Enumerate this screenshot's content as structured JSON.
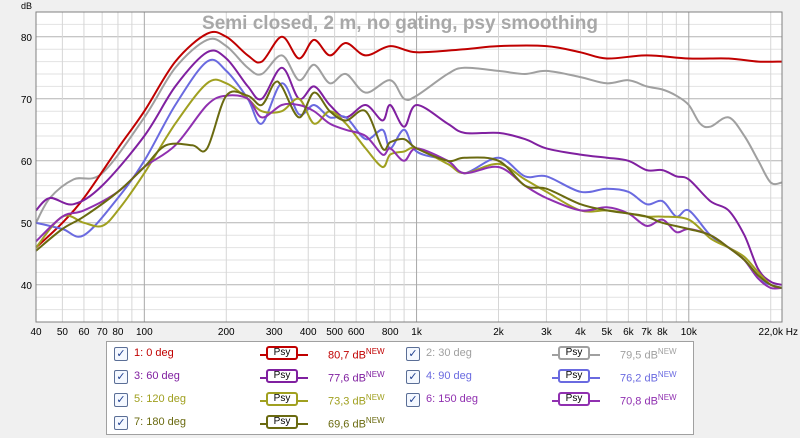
{
  "chart_data": {
    "type": "line",
    "title": "Semi closed, 2 m, no gating, psy smoothing",
    "ylabel": "dB",
    "xlabel": "Hz",
    "x_scale": "log",
    "xlim": [
      40,
      22000
    ],
    "ylim": [
      34,
      84
    ],
    "grid": true,
    "y_ticks": [
      40,
      50,
      60,
      70,
      80
    ],
    "x_ticks": [
      {
        "v": 40,
        "label": "40"
      },
      {
        "v": 50,
        "label": "50"
      },
      {
        "v": 60,
        "label": "60"
      },
      {
        "v": 70,
        "label": "70"
      },
      {
        "v": 80,
        "label": "80"
      },
      {
        "v": 100,
        "label": "100"
      },
      {
        "v": 200,
        "label": "200"
      },
      {
        "v": 300,
        "label": "300"
      },
      {
        "v": 400,
        "label": "400"
      },
      {
        "v": 500,
        "label": "500"
      },
      {
        "v": 600,
        "label": "600"
      },
      {
        "v": 800,
        "label": "800"
      },
      {
        "v": 1000,
        "label": "1k"
      },
      {
        "v": 2000,
        "label": "2k"
      },
      {
        "v": 3000,
        "label": "3k"
      },
      {
        "v": 4000,
        "label": "4k"
      },
      {
        "v": 5000,
        "label": "5k"
      },
      {
        "v": 6000,
        "label": "6k"
      },
      {
        "v": 7000,
        "label": "7k"
      },
      {
        "v": 8000,
        "label": "8k"
      },
      {
        "v": 10000,
        "label": "10k"
      },
      {
        "v": 22000,
        "label": "22,0k Hz"
      }
    ],
    "series": [
      {
        "name": "1: 0 deg",
        "color": "#c00000",
        "level": "80,7 dB",
        "points": [
          [
            40,
            46
          ],
          [
            50,
            50
          ],
          [
            60,
            54
          ],
          [
            80,
            62
          ],
          [
            100,
            68
          ],
          [
            130,
            76
          ],
          [
            170,
            80.5
          ],
          [
            200,
            80
          ],
          [
            240,
            77
          ],
          [
            270,
            76
          ],
          [
            320,
            80
          ],
          [
            370,
            76.5
          ],
          [
            420,
            79.5
          ],
          [
            480,
            77
          ],
          [
            550,
            79
          ],
          [
            650,
            77
          ],
          [
            800,
            78.5
          ],
          [
            1000,
            77.5
          ],
          [
            1500,
            78
          ],
          [
            2000,
            78.5
          ],
          [
            3000,
            78.5
          ],
          [
            4000,
            77.5
          ],
          [
            5000,
            76.5
          ],
          [
            7000,
            77
          ],
          [
            10000,
            76.5
          ],
          [
            14000,
            76.5
          ],
          [
            18000,
            76
          ],
          [
            22000,
            76
          ]
        ]
      },
      {
        "name": "2: 30 deg",
        "color": "#a0a0a0",
        "level": "79,5 dB",
        "points": [
          [
            40,
            50
          ],
          [
            45,
            54
          ],
          [
            55,
            57
          ],
          [
            70,
            58
          ],
          [
            100,
            67
          ],
          [
            130,
            75
          ],
          [
            170,
            79.5
          ],
          [
            200,
            78.5
          ],
          [
            240,
            75
          ],
          [
            270,
            74
          ],
          [
            320,
            77
          ],
          [
            370,
            73
          ],
          [
            420,
            75.5
          ],
          [
            480,
            72.5
          ],
          [
            550,
            74
          ],
          [
            650,
            71
          ],
          [
            800,
            73
          ],
          [
            900,
            70
          ],
          [
            1000,
            70.5
          ],
          [
            1300,
            74
          ],
          [
            1500,
            75
          ],
          [
            2000,
            74.5
          ],
          [
            2500,
            74
          ],
          [
            3000,
            74.5
          ],
          [
            4000,
            73.5
          ],
          [
            5000,
            72.5
          ],
          [
            6000,
            73
          ],
          [
            7000,
            72
          ],
          [
            8000,
            71.5
          ],
          [
            9000,
            70.5
          ],
          [
            10000,
            69
          ],
          [
            11000,
            66
          ],
          [
            12000,
            65.5
          ],
          [
            14000,
            67
          ],
          [
            16000,
            64
          ],
          [
            18000,
            60
          ],
          [
            20000,
            56.5
          ],
          [
            22000,
            56.5
          ]
        ]
      },
      {
        "name": "3: 60 deg",
        "color": "#8020a0",
        "level": "77,6 dB",
        "points": [
          [
            40,
            52
          ],
          [
            45,
            54
          ],
          [
            55,
            53
          ],
          [
            70,
            56
          ],
          [
            100,
            64
          ],
          [
            130,
            72
          ],
          [
            170,
            77.5
          ],
          [
            200,
            76.5
          ],
          [
            240,
            72
          ],
          [
            270,
            70
          ],
          [
            320,
            75
          ],
          [
            370,
            70
          ],
          [
            420,
            72
          ],
          [
            480,
            69
          ],
          [
            550,
            67
          ],
          [
            650,
            69
          ],
          [
            750,
            66.5
          ],
          [
            800,
            69
          ],
          [
            900,
            65.5
          ],
          [
            1000,
            69
          ],
          [
            1300,
            66
          ],
          [
            1500,
            64.5
          ],
          [
            2000,
            64.5
          ],
          [
            2500,
            63.5
          ],
          [
            3000,
            62
          ],
          [
            4000,
            61
          ],
          [
            5000,
            60.5
          ],
          [
            6000,
            60
          ],
          [
            7000,
            58.5
          ],
          [
            8000,
            58.5
          ],
          [
            9000,
            57.5
          ],
          [
            10000,
            57
          ],
          [
            12000,
            53.5
          ],
          [
            14000,
            52
          ],
          [
            16000,
            48
          ],
          [
            18000,
            42.5
          ],
          [
            20000,
            40.5
          ],
          [
            22000,
            40
          ]
        ]
      },
      {
        "name": "4: 90 deg",
        "color": "#6a6ae0",
        "level": "76,2 dB",
        "points": [
          [
            40,
            50
          ],
          [
            50,
            49
          ],
          [
            60,
            48
          ],
          [
            80,
            54
          ],
          [
            100,
            60
          ],
          [
            130,
            69
          ],
          [
            170,
            76
          ],
          [
            200,
            74.5
          ],
          [
            240,
            70
          ],
          [
            270,
            66
          ],
          [
            320,
            72.5
          ],
          [
            370,
            67.5
          ],
          [
            420,
            69
          ],
          [
            480,
            67
          ],
          [
            550,
            67
          ],
          [
            650,
            63.5
          ],
          [
            750,
            65
          ],
          [
            800,
            62
          ],
          [
            900,
            65
          ],
          [
            1000,
            61.5
          ],
          [
            1300,
            60
          ],
          [
            1500,
            58
          ],
          [
            2000,
            60.5
          ],
          [
            2500,
            57.5
          ],
          [
            3000,
            57.5
          ],
          [
            4000,
            55
          ],
          [
            5000,
            55.5
          ],
          [
            6000,
            55
          ],
          [
            7000,
            53
          ],
          [
            8000,
            53.5
          ],
          [
            9000,
            51
          ],
          [
            10000,
            52
          ],
          [
            12000,
            48
          ],
          [
            14000,
            46
          ],
          [
            16000,
            44
          ],
          [
            18000,
            41
          ],
          [
            20000,
            40
          ],
          [
            22000,
            39.5
          ]
        ]
      },
      {
        "name": "5: 120 deg",
        "color": "#a0a020",
        "level": "73,3 dB",
        "points": [
          [
            40,
            46
          ],
          [
            50,
            51
          ],
          [
            60,
            50
          ],
          [
            70,
            49.5
          ],
          [
            80,
            52
          ],
          [
            100,
            58
          ],
          [
            130,
            66
          ],
          [
            170,
            72.5
          ],
          [
            200,
            72.5
          ],
          [
            240,
            70
          ],
          [
            270,
            68
          ],
          [
            320,
            68
          ],
          [
            370,
            70
          ],
          [
            420,
            66
          ],
          [
            480,
            68
          ],
          [
            550,
            66
          ],
          [
            650,
            62
          ],
          [
            750,
            59
          ],
          [
            800,
            61
          ],
          [
            900,
            61.5
          ],
          [
            1000,
            62
          ],
          [
            1300,
            59.5
          ],
          [
            1500,
            58
          ],
          [
            2000,
            59.5
          ],
          [
            2500,
            57
          ],
          [
            3000,
            55
          ],
          [
            4000,
            52
          ],
          [
            5000,
            52
          ],
          [
            6000,
            51.5
          ],
          [
            7000,
            51
          ],
          [
            8000,
            51
          ],
          [
            10000,
            50.5
          ],
          [
            12000,
            47.5
          ],
          [
            14000,
            46
          ],
          [
            16000,
            44.5
          ],
          [
            18000,
            42
          ],
          [
            20000,
            40
          ],
          [
            22000,
            39.5
          ]
        ]
      },
      {
        "name": "6: 150 deg",
        "color": "#9030b0",
        "level": "70,8 dB",
        "points": [
          [
            40,
            47
          ],
          [
            50,
            51
          ],
          [
            60,
            52
          ],
          [
            80,
            55
          ],
          [
            100,
            59
          ],
          [
            130,
            62.5
          ],
          [
            170,
            69
          ],
          [
            200,
            70.5
          ],
          [
            240,
            70
          ],
          [
            270,
            67
          ],
          [
            320,
            69
          ],
          [
            370,
            69
          ],
          [
            420,
            68
          ],
          [
            480,
            66
          ],
          [
            550,
            65
          ],
          [
            650,
            64
          ],
          [
            750,
            61
          ],
          [
            800,
            62
          ],
          [
            900,
            60
          ],
          [
            1000,
            62
          ],
          [
            1300,
            60
          ],
          [
            1500,
            58
          ],
          [
            2000,
            59
          ],
          [
            2500,
            56
          ],
          [
            3000,
            54
          ],
          [
            4000,
            52
          ],
          [
            5000,
            52.5
          ],
          [
            6000,
            51.5
          ],
          [
            7000,
            49.5
          ],
          [
            8000,
            50.5
          ],
          [
            9000,
            48.5
          ],
          [
            10000,
            49
          ],
          [
            12000,
            48
          ],
          [
            14000,
            46
          ],
          [
            16000,
            44
          ],
          [
            18000,
            41
          ],
          [
            20000,
            39.5
          ],
          [
            22000,
            39.5
          ]
        ]
      },
      {
        "name": "7: 180 deg",
        "color": "#6a6a10",
        "level": "69,6 dB",
        "points": [
          [
            40,
            45.5
          ],
          [
            50,
            49
          ],
          [
            60,
            51
          ],
          [
            80,
            55
          ],
          [
            100,
            59
          ],
          [
            120,
            62.5
          ],
          [
            150,
            62.5
          ],
          [
            170,
            62
          ],
          [
            200,
            70.5
          ],
          [
            240,
            70.5
          ],
          [
            270,
            69
          ],
          [
            300,
            72.5
          ],
          [
            320,
            72
          ],
          [
            370,
            67
          ],
          [
            420,
            71
          ],
          [
            480,
            68
          ],
          [
            550,
            66.5
          ],
          [
            650,
            68
          ],
          [
            750,
            62
          ],
          [
            800,
            63
          ],
          [
            900,
            63.5
          ],
          [
            1000,
            62
          ],
          [
            1300,
            60
          ],
          [
            1500,
            60.5
          ],
          [
            2000,
            60
          ],
          [
            2500,
            56
          ],
          [
            3000,
            55.5
          ],
          [
            4000,
            53
          ],
          [
            5000,
            52
          ],
          [
            6000,
            51.5
          ],
          [
            7000,
            51
          ],
          [
            8000,
            50
          ],
          [
            10000,
            49
          ],
          [
            12000,
            48
          ],
          [
            14000,
            46
          ],
          [
            16000,
            44
          ],
          [
            18000,
            41.5
          ],
          [
            20000,
            40
          ],
          [
            22000,
            39.5
          ]
        ]
      }
    ]
  },
  "legend": {
    "psy_label": "Psy",
    "new_badge": "NEW",
    "items": [
      {
        "label": "1: 0 deg",
        "value": "80,7 dB",
        "color": "#c00000",
        "check": "✓"
      },
      {
        "label": "2: 30 deg",
        "value": "79,5 dB",
        "color": "#a0a0a0",
        "check": "✓"
      },
      {
        "label": "3: 60 deg",
        "value": "77,6 dB",
        "color": "#8020a0",
        "check": "✓"
      },
      {
        "label": "4: 90 deg",
        "value": "76,2 dB",
        "color": "#6a6ae0",
        "check": "✓"
      },
      {
        "label": "5: 120 deg",
        "value": "73,3 dB",
        "color": "#a0a020",
        "check": "✓"
      },
      {
        "label": "6: 150 deg",
        "value": "70,8 dB",
        "color": "#9030b0",
        "check": "✓"
      },
      {
        "label": "7: 180 deg",
        "value": "69,6 dB",
        "color": "#6a6a10",
        "check": "✓"
      }
    ]
  }
}
